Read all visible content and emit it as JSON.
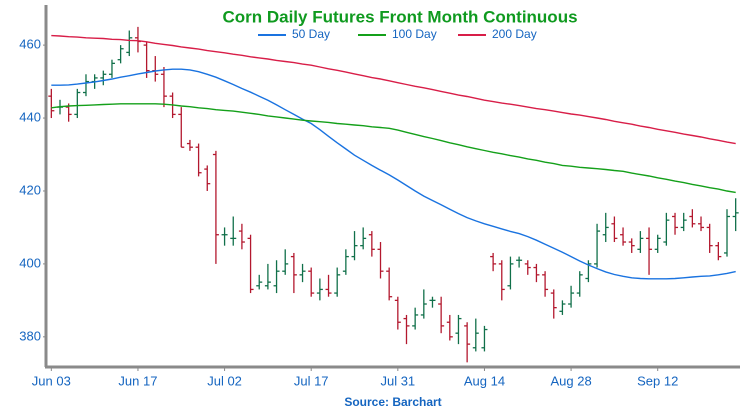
{
  "chart_data": {
    "type": "ohlc",
    "title": "Corn Daily Futures Front Month Continuous",
    "source": "Source: Barchart",
    "categories": [
      "Jun 03",
      null,
      null,
      null,
      null,
      null,
      null,
      null,
      null,
      null,
      "Jun 17",
      null,
      null,
      null,
      null,
      null,
      null,
      null,
      null,
      null,
      "Jul 02",
      null,
      null,
      null,
      null,
      null,
      null,
      null,
      null,
      null,
      "Jul 17",
      null,
      null,
      null,
      null,
      null,
      null,
      null,
      null,
      null,
      "Jul 31",
      null,
      null,
      null,
      null,
      null,
      null,
      null,
      null,
      null,
      "Aug 14",
      null,
      null,
      null,
      null,
      null,
      null,
      null,
      null,
      null,
      "Aug 28",
      null,
      null,
      null,
      null,
      null,
      null,
      null,
      null,
      null,
      "Sep 12",
      null,
      null,
      null,
      null,
      null,
      null,
      null,
      null,
      null
    ],
    "open": [
      446,
      443,
      443,
      441,
      447,
      450,
      451,
      452,
      456,
      458,
      462,
      460,
      453,
      452,
      446,
      441,
      433,
      432,
      426,
      430,
      408,
      407,
      409,
      407,
      394,
      394,
      394,
      398,
      402,
      397,
      398,
      392,
      393,
      392,
      398,
      402,
      405,
      408,
      404,
      398,
      390,
      385,
      383,
      386,
      390,
      389,
      384,
      381,
      383,
      377,
      377,
      402,
      400,
      394,
      401,
      400,
      399,
      397,
      392,
      387,
      389,
      392,
      396,
      400,
      408,
      411,
      408,
      406,
      404,
      407,
      404,
      406,
      413,
      410,
      413,
      411,
      410,
      405,
      403,
      413
    ],
    "high": [
      448,
      445,
      444,
      448,
      452,
      452,
      453,
      456,
      460,
      464,
      465,
      461,
      457,
      454,
      447,
      443,
      434,
      433,
      427,
      431,
      410,
      413,
      411,
      408,
      397,
      400,
      401,
      404,
      403,
      400,
      399,
      396,
      397,
      399,
      404,
      409,
      410,
      409,
      406,
      399,
      391,
      386,
      388,
      393,
      391,
      391,
      386,
      386,
      384,
      385,
      383,
      403,
      401,
      402,
      402,
      401,
      400,
      398,
      393,
      390,
      394,
      398,
      401,
      411,
      414,
      413,
      410,
      407,
      409,
      410,
      408,
      414,
      414,
      414,
      415,
      413,
      411,
      406,
      415,
      418
    ],
    "low": [
      440,
      441,
      439,
      440,
      446,
      448,
      449,
      451,
      455,
      457,
      458,
      451,
      450,
      443,
      440,
      432,
      431,
      424,
      420,
      400,
      405,
      405,
      404,
      392,
      393,
      393,
      392,
      397,
      392,
      395,
      391,
      390,
      391,
      391,
      397,
      401,
      404,
      402,
      396,
      390,
      382,
      378,
      382,
      385,
      388,
      381,
      379,
      378,
      373,
      376,
      376,
      398,
      390,
      393,
      399,
      397,
      395,
      391,
      385,
      386,
      388,
      391,
      395,
      399,
      406,
      406,
      405,
      403,
      403,
      397,
      403,
      405,
      408,
      409,
      410,
      409,
      403,
      401,
      402,
      409
    ],
    "close": [
      442,
      443,
      441,
      447,
      450,
      451,
      452,
      455,
      459,
      462,
      461,
      453,
      452,
      446,
      441,
      432,
      432,
      425,
      422,
      408,
      408,
      407,
      406,
      393,
      395,
      395,
      398,
      400,
      397,
      398,
      392,
      393,
      392,
      397,
      402,
      405,
      407,
      404,
      398,
      391,
      384,
      383,
      386,
      389,
      390,
      383,
      380,
      385,
      378,
      381,
      382,
      400,
      393,
      400,
      401,
      399,
      397,
      393,
      388,
      389,
      392,
      397,
      400,
      409,
      410,
      407,
      406,
      405,
      407,
      404,
      407,
      412,
      410,
      412,
      411,
      410,
      405,
      402,
      413,
      414
    ],
    "up_color": "#11704a",
    "down_color": "#b3182e",
    "series": [
      {
        "name": "50 Day",
        "color": "#1a73e0",
        "values": [
          449.0,
          449.0,
          449.1,
          449.3,
          449.6,
          449.9,
          450.3,
          450.7,
          451.2,
          451.6,
          452.1,
          452.5,
          452.9,
          453.2,
          453.4,
          453.4,
          453.2,
          452.7,
          452.0,
          451.2,
          450.2,
          449.2,
          448.1,
          447.1,
          446.0,
          444.9,
          443.6,
          442.3,
          441.0,
          439.7,
          438.5,
          436.8,
          435.0,
          433.2,
          431.5,
          429.8,
          428.4,
          427.0,
          425.7,
          424.4,
          423.0,
          421.5,
          420.0,
          418.6,
          417.4,
          416.2,
          415.0,
          413.8,
          412.7,
          411.8,
          411.0,
          410.3,
          409.6,
          408.9,
          408.3,
          407.5,
          406.5,
          405.4,
          404.3,
          403.2,
          402.0,
          400.8,
          399.7,
          398.7,
          397.8,
          397.1,
          396.6,
          396.2,
          396.0,
          395.9,
          395.9,
          395.9,
          396.0,
          396.2,
          396.4,
          396.6,
          396.7,
          397.0,
          397.4,
          397.9
        ]
      },
      {
        "name": "100 Day",
        "color": "#14a01a",
        "values": [
          442.8,
          443.1,
          443.3,
          443.4,
          443.5,
          443.6,
          443.7,
          443.8,
          443.9,
          443.9,
          443.9,
          443.9,
          443.9,
          443.8,
          443.6,
          443.3,
          443.1,
          442.8,
          442.6,
          442.3,
          442.1,
          441.9,
          441.6,
          441.3,
          441.0,
          440.6,
          440.3,
          440.0,
          439.7,
          439.4,
          439.2,
          439.0,
          438.8,
          438.5,
          438.3,
          438.1,
          437.9,
          437.6,
          437.4,
          437.2,
          436.7,
          436.1,
          435.5,
          434.9,
          434.4,
          433.8,
          433.2,
          432.7,
          432.1,
          431.6,
          431.1,
          430.6,
          430.2,
          429.7,
          429.3,
          428.8,
          428.4,
          427.9,
          427.5,
          427.0,
          426.8,
          426.5,
          426.3,
          426.1,
          425.9,
          425.6,
          425.4,
          424.9,
          424.5,
          424.1,
          423.6,
          423.2,
          422.7,
          422.3,
          421.8,
          421.4,
          420.9,
          420.5,
          420.0,
          419.6
        ]
      },
      {
        "name": "200 Day",
        "color": "#d81e48",
        "values": [
          462.6,
          462.5,
          462.3,
          462.2,
          462.0,
          461.9,
          461.8,
          461.6,
          461.5,
          461.3,
          461.2,
          460.9,
          460.5,
          460.2,
          459.9,
          459.5,
          459.2,
          458.9,
          458.5,
          458.2,
          457.9,
          457.5,
          457.2,
          456.8,
          456.5,
          456.2,
          455.8,
          455.5,
          455.2,
          454.8,
          454.5,
          454.0,
          453.5,
          453.1,
          452.6,
          452.1,
          451.6,
          451.1,
          450.7,
          450.2,
          449.7,
          449.2,
          448.7,
          448.3,
          447.8,
          447.3,
          446.8,
          446.3,
          445.9,
          445.4,
          444.9,
          444.5,
          444.1,
          443.8,
          443.4,
          443.0,
          442.6,
          442.3,
          441.9,
          441.5,
          441.1,
          440.8,
          440.4,
          440.0,
          439.6,
          439.1,
          438.7,
          438.3,
          437.8,
          437.4,
          436.9,
          436.5,
          436.1,
          435.6,
          435.2,
          434.8,
          434.3,
          433.9,
          433.4,
          433.0
        ]
      }
    ],
    "ylim": [
      372,
      471
    ],
    "yticks": [
      380,
      400,
      420,
      440,
      460
    ]
  }
}
